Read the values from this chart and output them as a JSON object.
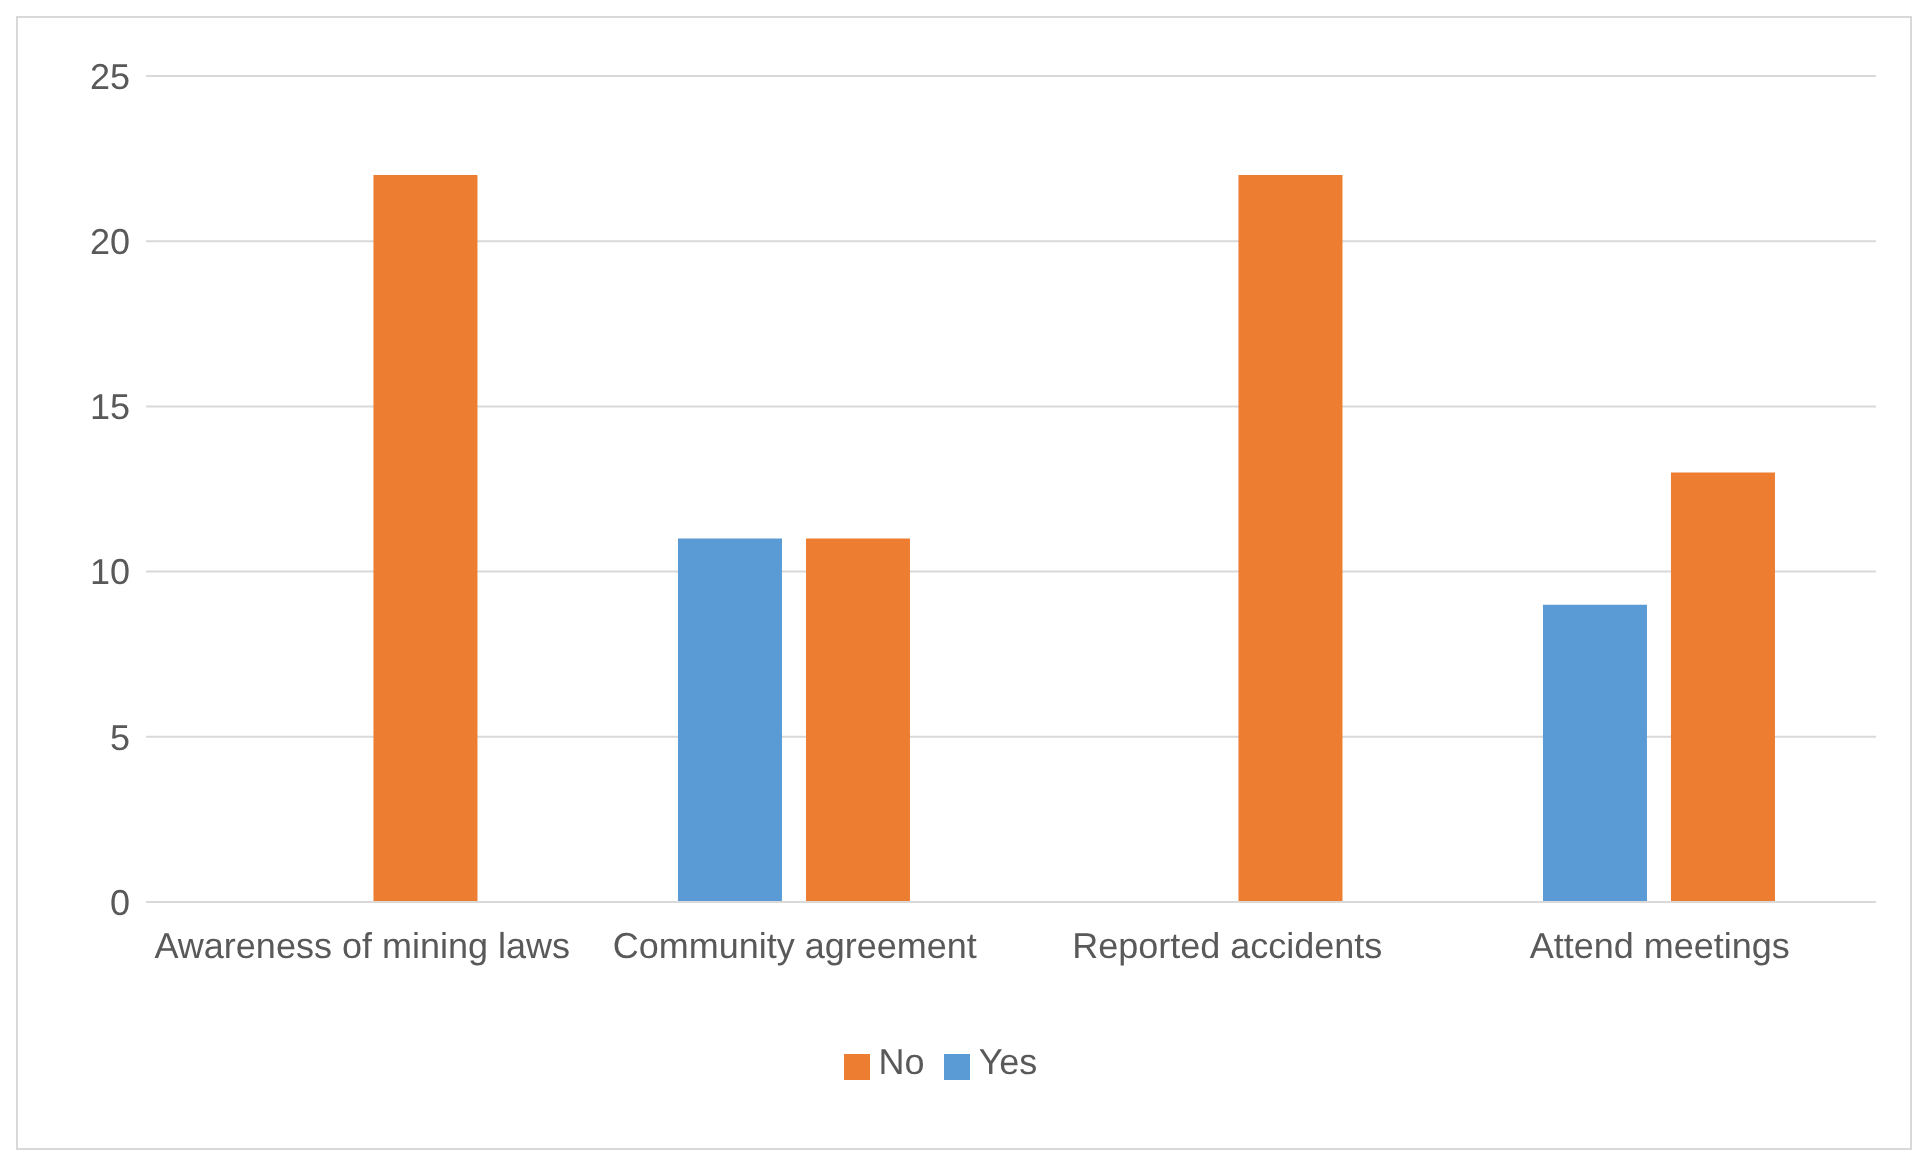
{
  "chart_data": {
    "type": "bar",
    "categories": [
      "Awareness of mining laws",
      "Community agreement",
      "Reported accidents",
      "Attend meetings"
    ],
    "series": [
      {
        "name": "Yes",
        "color": "#5b9bd5",
        "values": [
          0,
          11,
          0,
          9
        ]
      },
      {
        "name": "No",
        "color": "#ed7d31",
        "values": [
          22,
          11,
          22,
          13
        ]
      }
    ],
    "ylim": [
      0,
      25
    ],
    "yticks": [
      0,
      5,
      10,
      15,
      20,
      25
    ],
    "grid": "y",
    "legend": "bottom"
  }
}
